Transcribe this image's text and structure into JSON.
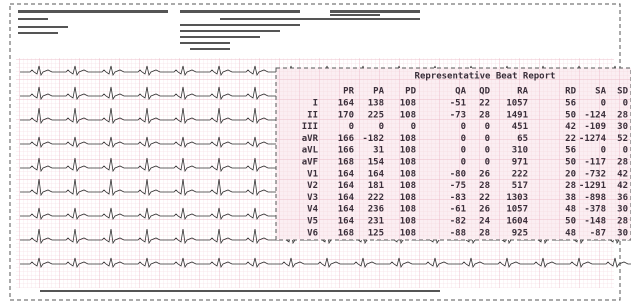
{
  "table": {
    "title": "Representative Beat Report",
    "header": [
      "PR",
      "PA",
      "PD",
      "QA",
      "QD",
      "RA",
      "RD",
      "SA",
      "SD"
    ],
    "rows": [
      [
        "I",
        164,
        138,
        108,
        -51,
        22,
        1057,
        56,
        0,
        0
      ],
      [
        "II",
        170,
        225,
        108,
        -73,
        28,
        1491,
        50,
        -124,
        28
      ],
      [
        "III",
        0,
        0,
        0,
        0,
        0,
        451,
        42,
        -109,
        30
      ],
      [
        "aVR",
        166,
        -182,
        108,
        0,
        0,
        65,
        22,
        -1274,
        52
      ],
      [
        "aVL",
        166,
        31,
        108,
        0,
        0,
        310,
        56,
        0,
        0
      ],
      [
        "aVF",
        168,
        154,
        108,
        0,
        0,
        971,
        50,
        -117,
        28
      ],
      [
        "V1",
        164,
        164,
        108,
        -80,
        26,
        222,
        20,
        -732,
        42
      ],
      [
        "V2",
        164,
        181,
        108,
        -75,
        28,
        517,
        28,
        -1291,
        42
      ],
      [
        "V3",
        164,
        222,
        108,
        -83,
        22,
        1303,
        38,
        -898,
        36
      ],
      [
        "V4",
        164,
        236,
        108,
        -61,
        26,
        1057,
        48,
        -378,
        30
      ],
      [
        "V5",
        164,
        231,
        108,
        -82,
        24,
        1604,
        50,
        -148,
        28
      ],
      [
        "V6",
        168,
        125,
        108,
        -88,
        28,
        925,
        48,
        -87,
        30
      ]
    ]
  }
}
